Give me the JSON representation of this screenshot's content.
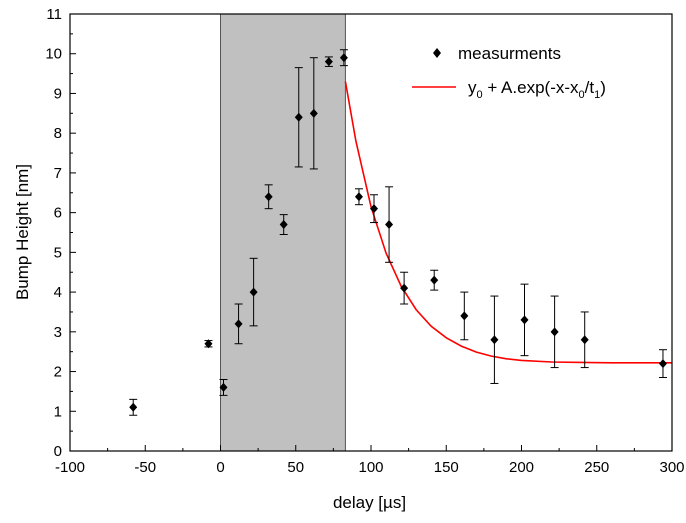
{
  "chart_data": {
    "type": "scatter",
    "title": "",
    "xlabel": "delay [µs]",
    "ylabel": "Bump Height [nm]",
    "xlim": [
      -100,
      300
    ],
    "ylim": [
      0,
      11
    ],
    "x_ticks": [
      -100,
      -50,
      0,
      50,
      100,
      150,
      200,
      250,
      300
    ],
    "y_ticks": [
      0,
      1,
      2,
      3,
      4,
      5,
      6,
      7,
      8,
      9,
      10,
      11
    ],
    "grid": false,
    "legend_position": "top-right",
    "shaded_region": {
      "x_start": 0,
      "x_end": 83,
      "color": "#c0c0c0"
    },
    "series": [
      {
        "name": "measurments",
        "kind": "scatter_with_error_bars",
        "marker": "diamond",
        "color": "#000000",
        "points": [
          {
            "x": -58,
            "y": 1.1,
            "err": 0.2
          },
          {
            "x": -8,
            "y": 2.7,
            "err": 0.08
          },
          {
            "x": 2,
            "y": 1.6,
            "err": 0.2
          },
          {
            "x": 12,
            "y": 3.2,
            "err": 0.5
          },
          {
            "x": 22,
            "y": 4.0,
            "err": 0.85
          },
          {
            "x": 32,
            "y": 6.4,
            "err": 0.3
          },
          {
            "x": 42,
            "y": 5.7,
            "err": 0.25
          },
          {
            "x": 52,
            "y": 8.4,
            "err": 1.25
          },
          {
            "x": 62,
            "y": 8.5,
            "err": 1.4
          },
          {
            "x": 72,
            "y": 9.8,
            "err": 0.12
          },
          {
            "x": 82,
            "y": 9.9,
            "err": 0.2
          },
          {
            "x": 92,
            "y": 6.4,
            "err": 0.2
          },
          {
            "x": 102,
            "y": 6.1,
            "err": 0.35
          },
          {
            "x": 112,
            "y": 5.7,
            "err": 0.95
          },
          {
            "x": 122,
            "y": 4.1,
            "err": 0.4
          },
          {
            "x": 142,
            "y": 4.3,
            "err": 0.25
          },
          {
            "x": 162,
            "y": 3.4,
            "err": 0.6
          },
          {
            "x": 182,
            "y": 2.8,
            "err": 1.1
          },
          {
            "x": 202,
            "y": 3.3,
            "err": 0.9
          },
          {
            "x": 222,
            "y": 3.0,
            "err": 0.9
          },
          {
            "x": 242,
            "y": 2.8,
            "err": 0.7
          },
          {
            "x": 294,
            "y": 2.2,
            "err": 0.35
          }
        ]
      },
      {
        "name": "y0 + A.exp(-x-x0/t1)",
        "kind": "line",
        "color": "#ff0000",
        "points": [
          {
            "x": 83,
            "y": 9.3
          },
          {
            "x": 90,
            "y": 7.8
          },
          {
            "x": 100,
            "y": 6.15
          },
          {
            "x": 110,
            "y": 4.98
          },
          {
            "x": 120,
            "y": 4.15
          },
          {
            "x": 130,
            "y": 3.56
          },
          {
            "x": 140,
            "y": 3.14
          },
          {
            "x": 150,
            "y": 2.85
          },
          {
            "x": 160,
            "y": 2.64
          },
          {
            "x": 170,
            "y": 2.49
          },
          {
            "x": 180,
            "y": 2.39
          },
          {
            "x": 190,
            "y": 2.32
          },
          {
            "x": 200,
            "y": 2.28
          },
          {
            "x": 220,
            "y": 2.24
          },
          {
            "x": 240,
            "y": 2.23
          },
          {
            "x": 260,
            "y": 2.22
          },
          {
            "x": 280,
            "y": 2.22
          },
          {
            "x": 300,
            "y": 2.22
          }
        ]
      }
    ]
  },
  "legend": {
    "items": [
      {
        "label": "measurments"
      },
      {
        "label_parts": [
          "y",
          "0",
          " + A.exp(-x-x",
          "0",
          "/t",
          "1",
          ")"
        ]
      }
    ]
  }
}
